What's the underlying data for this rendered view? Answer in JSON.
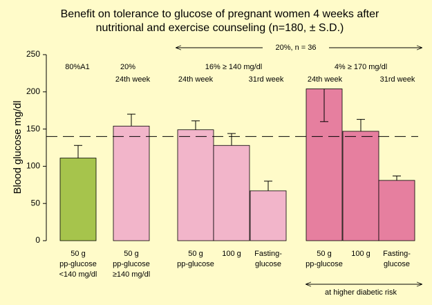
{
  "chart_data": {
    "type": "bar",
    "title": [
      "Benefit on tolerance to glucose of pregnant women 4 weeks after",
      "nutritional and exercise counseling (n=180, ± S.D.)"
    ],
    "y_label": "Blood glucose mg/dl",
    "categories": [
      [
        "50 g",
        "pp-glucose",
        "<140 mg/dl"
      ],
      [
        "50 g",
        "pp-glucose",
        "≥140 mg/dl"
      ],
      [
        "50 g",
        "pp-glucose"
      ],
      [
        "100 g"
      ],
      [
        "Fasting-",
        "glucose"
      ],
      [
        "50 g",
        "pp-glucose"
      ],
      [
        "100 g"
      ],
      [
        "Fasting-",
        "glucose"
      ]
    ],
    "values": [
      111,
      154,
      149,
      128,
      67,
      204,
      147,
      81
    ],
    "errors": [
      17,
      16,
      12,
      16,
      13,
      44,
      16,
      6
    ],
    "error_direction": [
      "up",
      "up",
      "up",
      "up",
      "up",
      "down",
      "up",
      "up"
    ],
    "colors": [
      "#a6c44c",
      "#f2b5ca",
      "#f2b5ca",
      "#f2b5ca",
      "#f2b5ca",
      "#e67f9f",
      "#e67f9f",
      "#e67f9f"
    ],
    "reference_line": 140,
    "annotations": [
      "80%A1",
      "20%",
      "24th week",
      "16% ≥ 140 mg/dl",
      "24th week",
      "31rd week",
      "4% ≥ 170 mg/dl",
      "24th week",
      "31rd week"
    ],
    "top_arrow_label": "20%, n = 36",
    "bottom_arrow_label": "at higher diabetic risk",
    "ylim": [
      0,
      250
    ],
    "yticks": [
      0,
      50,
      100,
      150,
      200,
      250
    ]
  }
}
